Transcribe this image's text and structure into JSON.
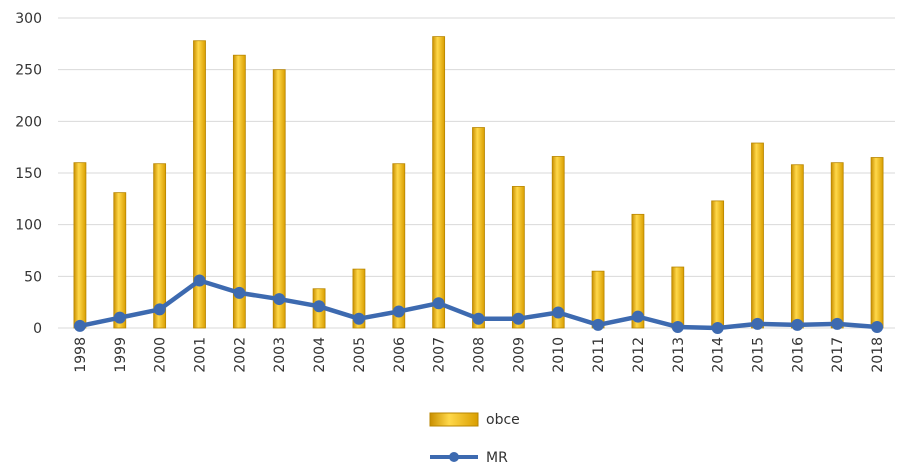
{
  "chart_data": {
    "type": "bar",
    "categories": [
      "1998",
      "1999",
      "2000",
      "2001",
      "2002",
      "2003",
      "2004",
      "2005",
      "2006",
      "2007",
      "2008",
      "2009",
      "2010",
      "2011",
      "2012",
      "2013",
      "2014",
      "2015",
      "2016",
      "2017",
      "2018"
    ],
    "series": [
      {
        "name": "obce",
        "type": "bar",
        "color": "#f2b705",
        "values": [
          160,
          131,
          159,
          278,
          264,
          250,
          38,
          57,
          159,
          282,
          194,
          137,
          166,
          55,
          110,
          59,
          123,
          179,
          158,
          160,
          165
        ]
      },
      {
        "name": "MR",
        "type": "line",
        "color": "#3d6ab0",
        "values": [
          2,
          10,
          18,
          46,
          34,
          28,
          21,
          9,
          16,
          24,
          9,
          9,
          15,
          3,
          11,
          1,
          0,
          4,
          3,
          4,
          1
        ]
      }
    ],
    "ylim": [
      0,
      300
    ],
    "yticks": [
      0,
      50,
      100,
      150,
      200,
      250,
      300
    ],
    "ytick_labels": [
      "0",
      "50",
      "100",
      "150",
      "200",
      "250",
      "300"
    ],
    "grid": true,
    "legend": "bottom-center"
  }
}
